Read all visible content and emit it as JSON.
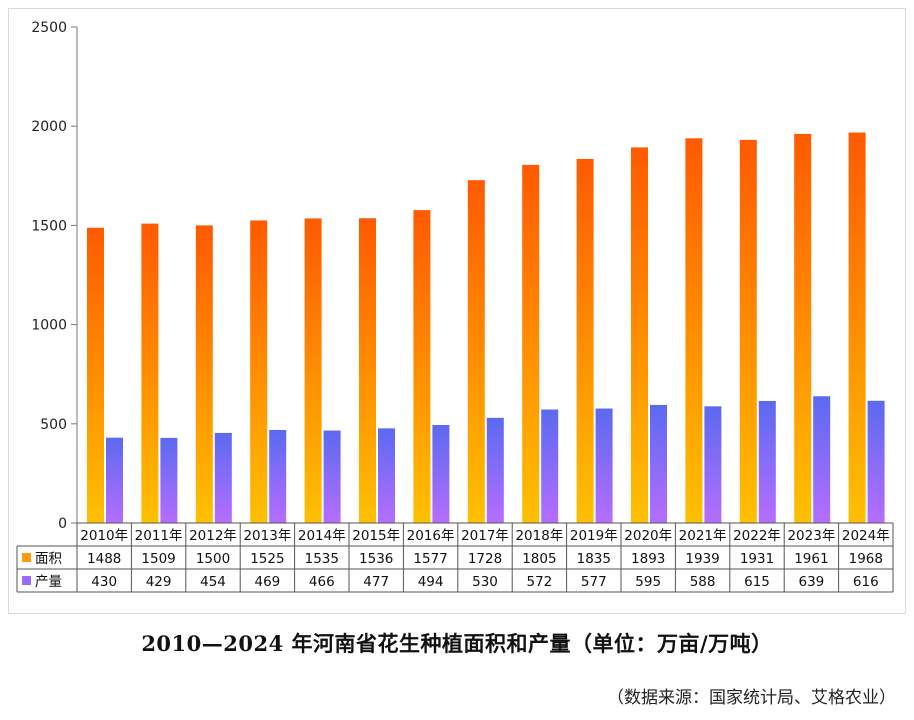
{
  "chart_data": {
    "type": "bar",
    "title": "2010—2024 年河南省花生种植面积和产量（单位：万亩/万吨）",
    "source": "（数据来源：国家统计局、艾格农业）",
    "categories": [
      "2010年",
      "2011年",
      "2012年",
      "2013年",
      "2014年",
      "2015年",
      "2016年",
      "2017年",
      "2018年",
      "2019年",
      "2020年",
      "2021年",
      "2022年",
      "2023年",
      "2024年"
    ],
    "series": [
      {
        "name": "面积",
        "values": [
          1488,
          1509,
          1500,
          1525,
          1535,
          1536,
          1577,
          1728,
          1805,
          1835,
          1893,
          1939,
          1931,
          1961,
          1968
        ]
      },
      {
        "name": "产量",
        "values": [
          430,
          429,
          454,
          469,
          466,
          477,
          494,
          530,
          572,
          577,
          595,
          588,
          615,
          639,
          616
        ]
      }
    ],
    "ylim": [
      0,
      2500
    ],
    "yticks": [
      0,
      500,
      1000,
      1500,
      2000,
      2500
    ],
    "xlabel": "",
    "ylabel": "",
    "legend": "data-table",
    "colors": {
      "area_top": "#ff5a00",
      "area_bottom": "#ffc000",
      "area_legend": "#ff9a10",
      "yield_top": "#5b6af0",
      "yield_bottom": "#b66dff",
      "yield_legend": "#9b6bff",
      "grid": "#e6e6e6",
      "axis": "#777777"
    }
  }
}
